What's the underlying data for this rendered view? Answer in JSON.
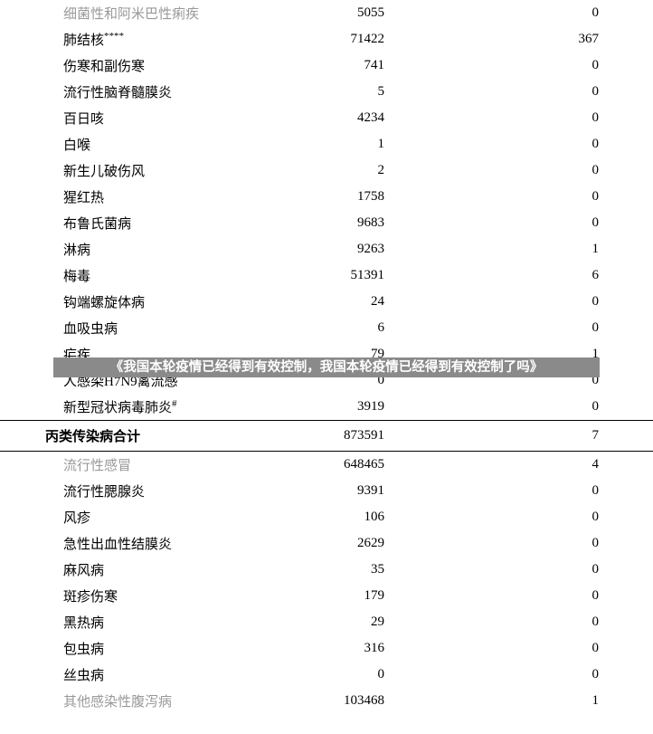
{
  "section1": {
    "rows": [
      {
        "name": "细菌性和阿米巴性痢疾",
        "v1": "5055",
        "v2": "0",
        "grey": true
      },
      {
        "name": "肺结核",
        "sup": "****",
        "v1": "71422",
        "v2": "367"
      },
      {
        "name": "伤寒和副伤寒",
        "v1": "741",
        "v2": "0"
      },
      {
        "name": "流行性脑脊髓膜炎",
        "v1": "5",
        "v2": "0"
      },
      {
        "name": "百日咳",
        "v1": "4234",
        "v2": "0"
      },
      {
        "name": "白喉",
        "v1": "1",
        "v2": "0"
      },
      {
        "name": "新生儿破伤风",
        "v1": "2",
        "v2": "0"
      },
      {
        "name": "猩红热",
        "v1": "1758",
        "v2": "0"
      },
      {
        "name": "布鲁氏菌病",
        "v1": "9683",
        "v2": "0"
      },
      {
        "name": "淋病",
        "v1": "9263",
        "v2": "1"
      },
      {
        "name": "梅毒",
        "v1": "51391",
        "v2": "6"
      },
      {
        "name": "钩端螺旋体病",
        "v1": "24",
        "v2": "0"
      },
      {
        "name": "血吸虫病",
        "v1": "6",
        "v2": "0"
      },
      {
        "name": "疟疾",
        "v1": "79",
        "v2": "1",
        "hidden_behind": true
      },
      {
        "name": "人感染H7N9禽流感",
        "v1": "0",
        "v2": "0"
      },
      {
        "name": "新型冠状病毒肺炎",
        "sup": "#",
        "v1": "3919",
        "v2": "0"
      }
    ]
  },
  "subtotal": {
    "label": "丙类传染病合计",
    "v1": "873591",
    "v2": "7"
  },
  "section2": {
    "rows": [
      {
        "name": "流行性感冒",
        "v1": "648465",
        "v2": "4",
        "grey": true
      },
      {
        "name": "流行性腮腺炎",
        "v1": "9391",
        "v2": "0"
      },
      {
        "name": "风疹",
        "v1": "106",
        "v2": "0"
      },
      {
        "name": "急性出血性结膜炎",
        "v1": "2629",
        "v2": "0"
      },
      {
        "name": "麻风病",
        "v1": "35",
        "v2": "0"
      },
      {
        "name": "斑疹伤寒",
        "v1": "179",
        "v2": "0"
      },
      {
        "name": "黑热病",
        "v1": "29",
        "v2": "0"
      },
      {
        "name": "包虫病",
        "v1": "316",
        "v2": "0"
      },
      {
        "name": "丝虫病",
        "v1": "0",
        "v2": "0"
      },
      {
        "name": "其他感染性腹泻病",
        "v1": "103468",
        "v2": "1",
        "grey": true
      }
    ]
  },
  "overlay_text": "《我国本轮疫情已经得到有效控制，我国本轮疫情已经得到有效控制了吗》"
}
